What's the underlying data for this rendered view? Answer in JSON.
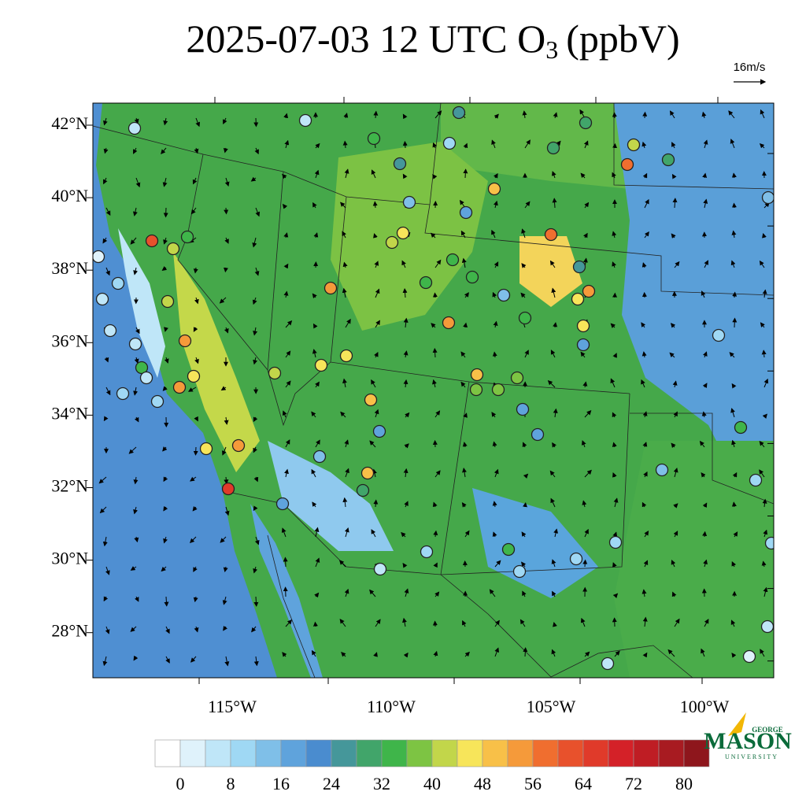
{
  "header": {
    "title": {
      "main": "2025-07-03 12 UTC O",
      "subscript": "3",
      "unit": "(ppbV)"
    },
    "wind_reference": "16m/s"
  },
  "map": {
    "lat_labels": [
      "42°N",
      "40°N",
      "38°N",
      "36°N",
      "34°N",
      "32°N",
      "30°N",
      "28°N"
    ],
    "lon_labels": [
      "115°W",
      "110°W",
      "105°W",
      "100°W"
    ]
  },
  "colorbar": {
    "labels": [
      "0",
      "8",
      "16",
      "24",
      "32",
      "40",
      "48",
      "56",
      "64",
      "72",
      "80"
    ],
    "colors": [
      "#ffffff",
      "#dff2fb",
      "#bfe6f8",
      "#9fd8f4",
      "#7fbfe8",
      "#5fa3dc",
      "#4a8ccf",
      "#45979a",
      "#41a56a",
      "#3fb54a",
      "#7dc443",
      "#c2d64a",
      "#f7e55a",
      "#f8c048",
      "#f59a3a",
      "#f06e2f",
      "#e8512c",
      "#e03a2a",
      "#d42128",
      "#bf1d24",
      "#a81b21",
      "#8e161c"
    ]
  },
  "logo": {
    "top": "GEORGE",
    "name": "MASON",
    "bottom": "UNIVERSITY"
  }
}
